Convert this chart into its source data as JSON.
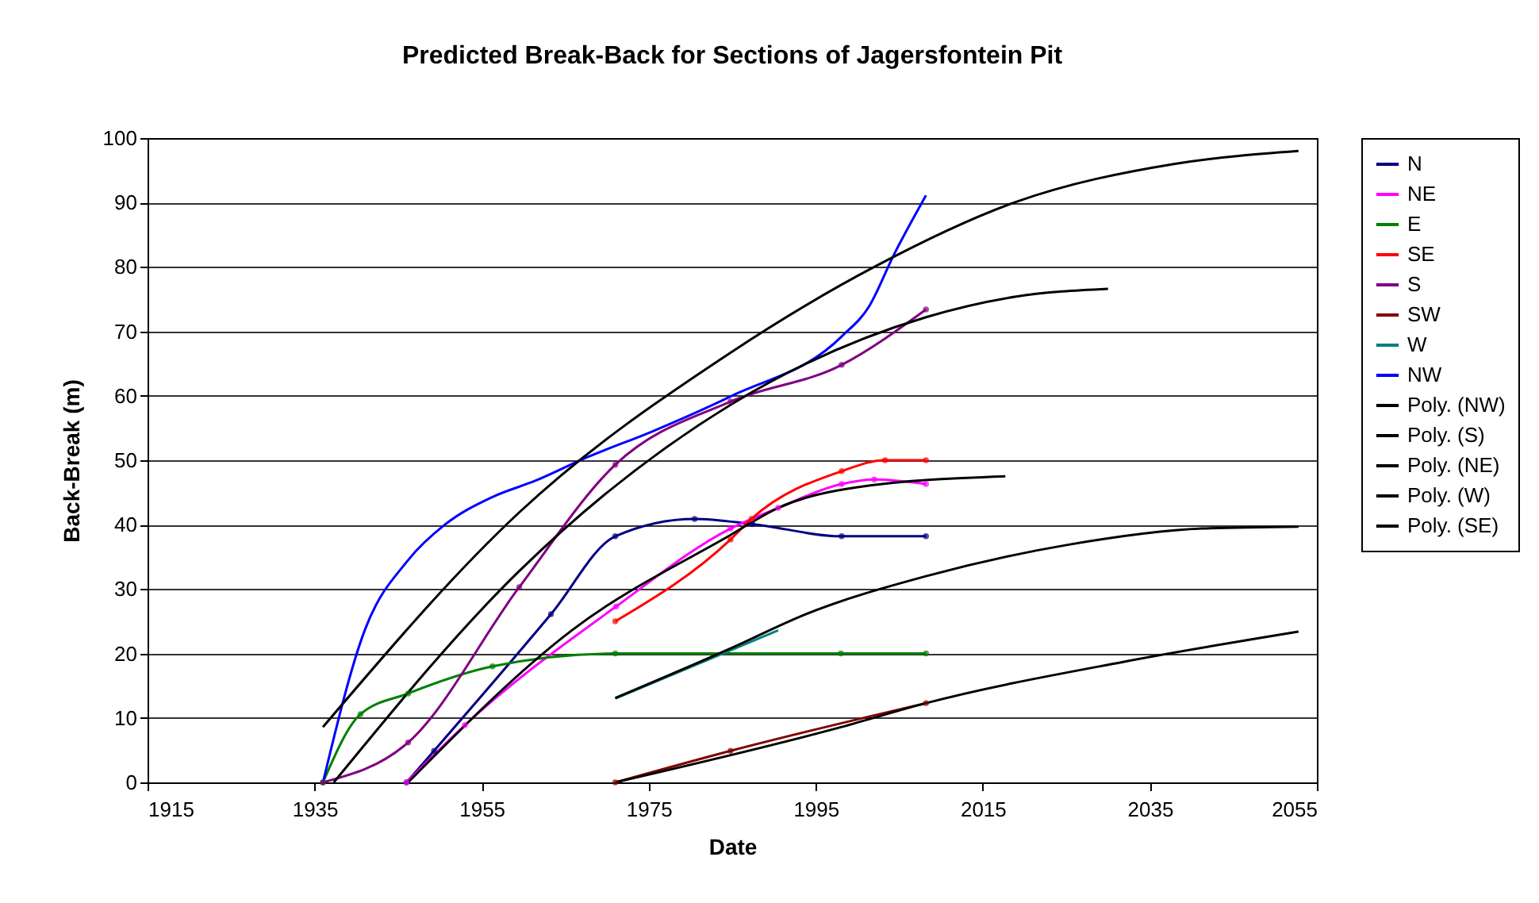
{
  "chart_data": {
    "type": "line",
    "title": "Predicted Break-Back for Sections of Jagersfontein Pit",
    "xlabel": "Date",
    "ylabel": "Back-Break (m)",
    "xlim": [
      1915,
      2055
    ],
    "xticks": [
      1915,
      1935,
      1955,
      1975,
      1995,
      2015,
      2035,
      2055
    ],
    "ylim": [
      0,
      100
    ],
    "yticks": [
      0,
      10,
      20,
      30,
      40,
      50,
      60,
      70,
      80,
      90,
      100
    ],
    "grid": "y",
    "legend": "right",
    "line_style": "solid",
    "series": [
      {
        "name": "N",
        "color": "#000080",
        "marker": "circle",
        "x": [
          1946,
          1949.3,
          1963.3,
          1971,
          1980.5,
          1987.4,
          1998.1,
          2008.2
        ],
        "values": [
          0,
          4.9,
          26.1,
          38.2,
          40.9,
          40.1,
          38.2,
          38.2
        ]
      },
      {
        "name": "NE",
        "color": "#ff00ff",
        "marker": "circle",
        "x": [
          1946,
          1953,
          1971.1,
          1984.8,
          1990.5,
          1998.1,
          2002,
          2008.2
        ],
        "values": [
          0,
          8.9,
          27.3,
          39.4,
          42.6,
          46.3,
          47,
          46.3
        ]
      },
      {
        "name": "E",
        "color": "#008000",
        "marker": "circle",
        "x": [
          1936,
          1940.5,
          1946.2,
          1956.3,
          1971,
          1998,
          2008.2
        ],
        "values": [
          0,
          10.6,
          13.8,
          18,
          20,
          20,
          20
        ]
      },
      {
        "name": "SE",
        "color": "#ff0000",
        "marker": "circle",
        "x": [
          1971,
          1984.8,
          1987.3,
          1998.1,
          2003.3,
          2008.2
        ],
        "values": [
          25,
          37.7,
          40.9,
          48.3,
          50,
          50
        ]
      },
      {
        "name": "S",
        "color": "#800080",
        "marker": "circle",
        "x": [
          1936,
          1946.2,
          1959.5,
          1971,
          1984.8,
          1998.1,
          2008.2
        ],
        "values": [
          0,
          6.2,
          30.3,
          49.3,
          59.1,
          64.8,
          73.4
        ]
      },
      {
        "name": "SW",
        "color": "#800000",
        "marker": "circle",
        "x": [
          1971,
          1984.8,
          2008.2
        ],
        "values": [
          0,
          4.9,
          12.3
        ]
      },
      {
        "name": "W",
        "color": "#008080",
        "marker": "none",
        "x": [
          1971,
          1990.5
        ],
        "values": [
          13,
          23.6
        ]
      },
      {
        "name": "NW",
        "color": "#0000ff",
        "marker": "none",
        "x": [
          1936,
          1941,
          1946.2,
          1950.6,
          1956.3,
          1961.4,
          1967.7,
          1975.3,
          1984.8,
          1998.1,
          2001.4,
          2004.4,
          2008.2
        ],
        "values": [
          0,
          23.6,
          34.5,
          40,
          44.3,
          46.8,
          50.5,
          54.4,
          59.9,
          69.2,
          73.9,
          82,
          91.1
        ]
      },
      {
        "name": "Poly. (NW)",
        "color": "#000000",
        "marker": "none",
        "x": [
          1936,
          1959.5,
          1984.8,
          2002,
          2019,
          2038,
          2052.8
        ],
        "values": [
          8.6,
          41.9,
          66.7,
          80,
          90.1,
          96,
          98
        ]
      },
      {
        "name": "Poly. (S)",
        "color": "#000000",
        "marker": "none",
        "x": [
          1937.3,
          1959.5,
          1984.8,
          2008.2,
          2019,
          2030
        ],
        "values": [
          0,
          32.8,
          58.6,
          72.2,
          75.4,
          76.6
        ]
      },
      {
        "name": "Poly. (NE)",
        "color": "#000000",
        "marker": "none",
        "x": [
          1946.2,
          1965.8,
          1984.8,
          1990.5,
          2000,
          2017.7
        ],
        "values": [
          0,
          23.6,
          38.4,
          42.6,
          45.8,
          47.5
        ]
      },
      {
        "name": "Poly. (W)",
        "color": "#000000",
        "marker": "none",
        "x": [
          1971,
          1984.8,
          1993.8,
          2008.2,
          2025.3,
          2041.3,
          2052.8
        ],
        "values": [
          13.1,
          20.8,
          26.1,
          32,
          36.9,
          39.4,
          39.7
        ]
      },
      {
        "name": "Poly. (SE)",
        "color": "#000000",
        "marker": "none",
        "x": [
          1971,
          1998.1,
          2008.2,
          2031.8,
          2052.8
        ],
        "values": [
          0,
          8.6,
          12.3,
          18.7,
          23.4
        ]
      }
    ]
  }
}
